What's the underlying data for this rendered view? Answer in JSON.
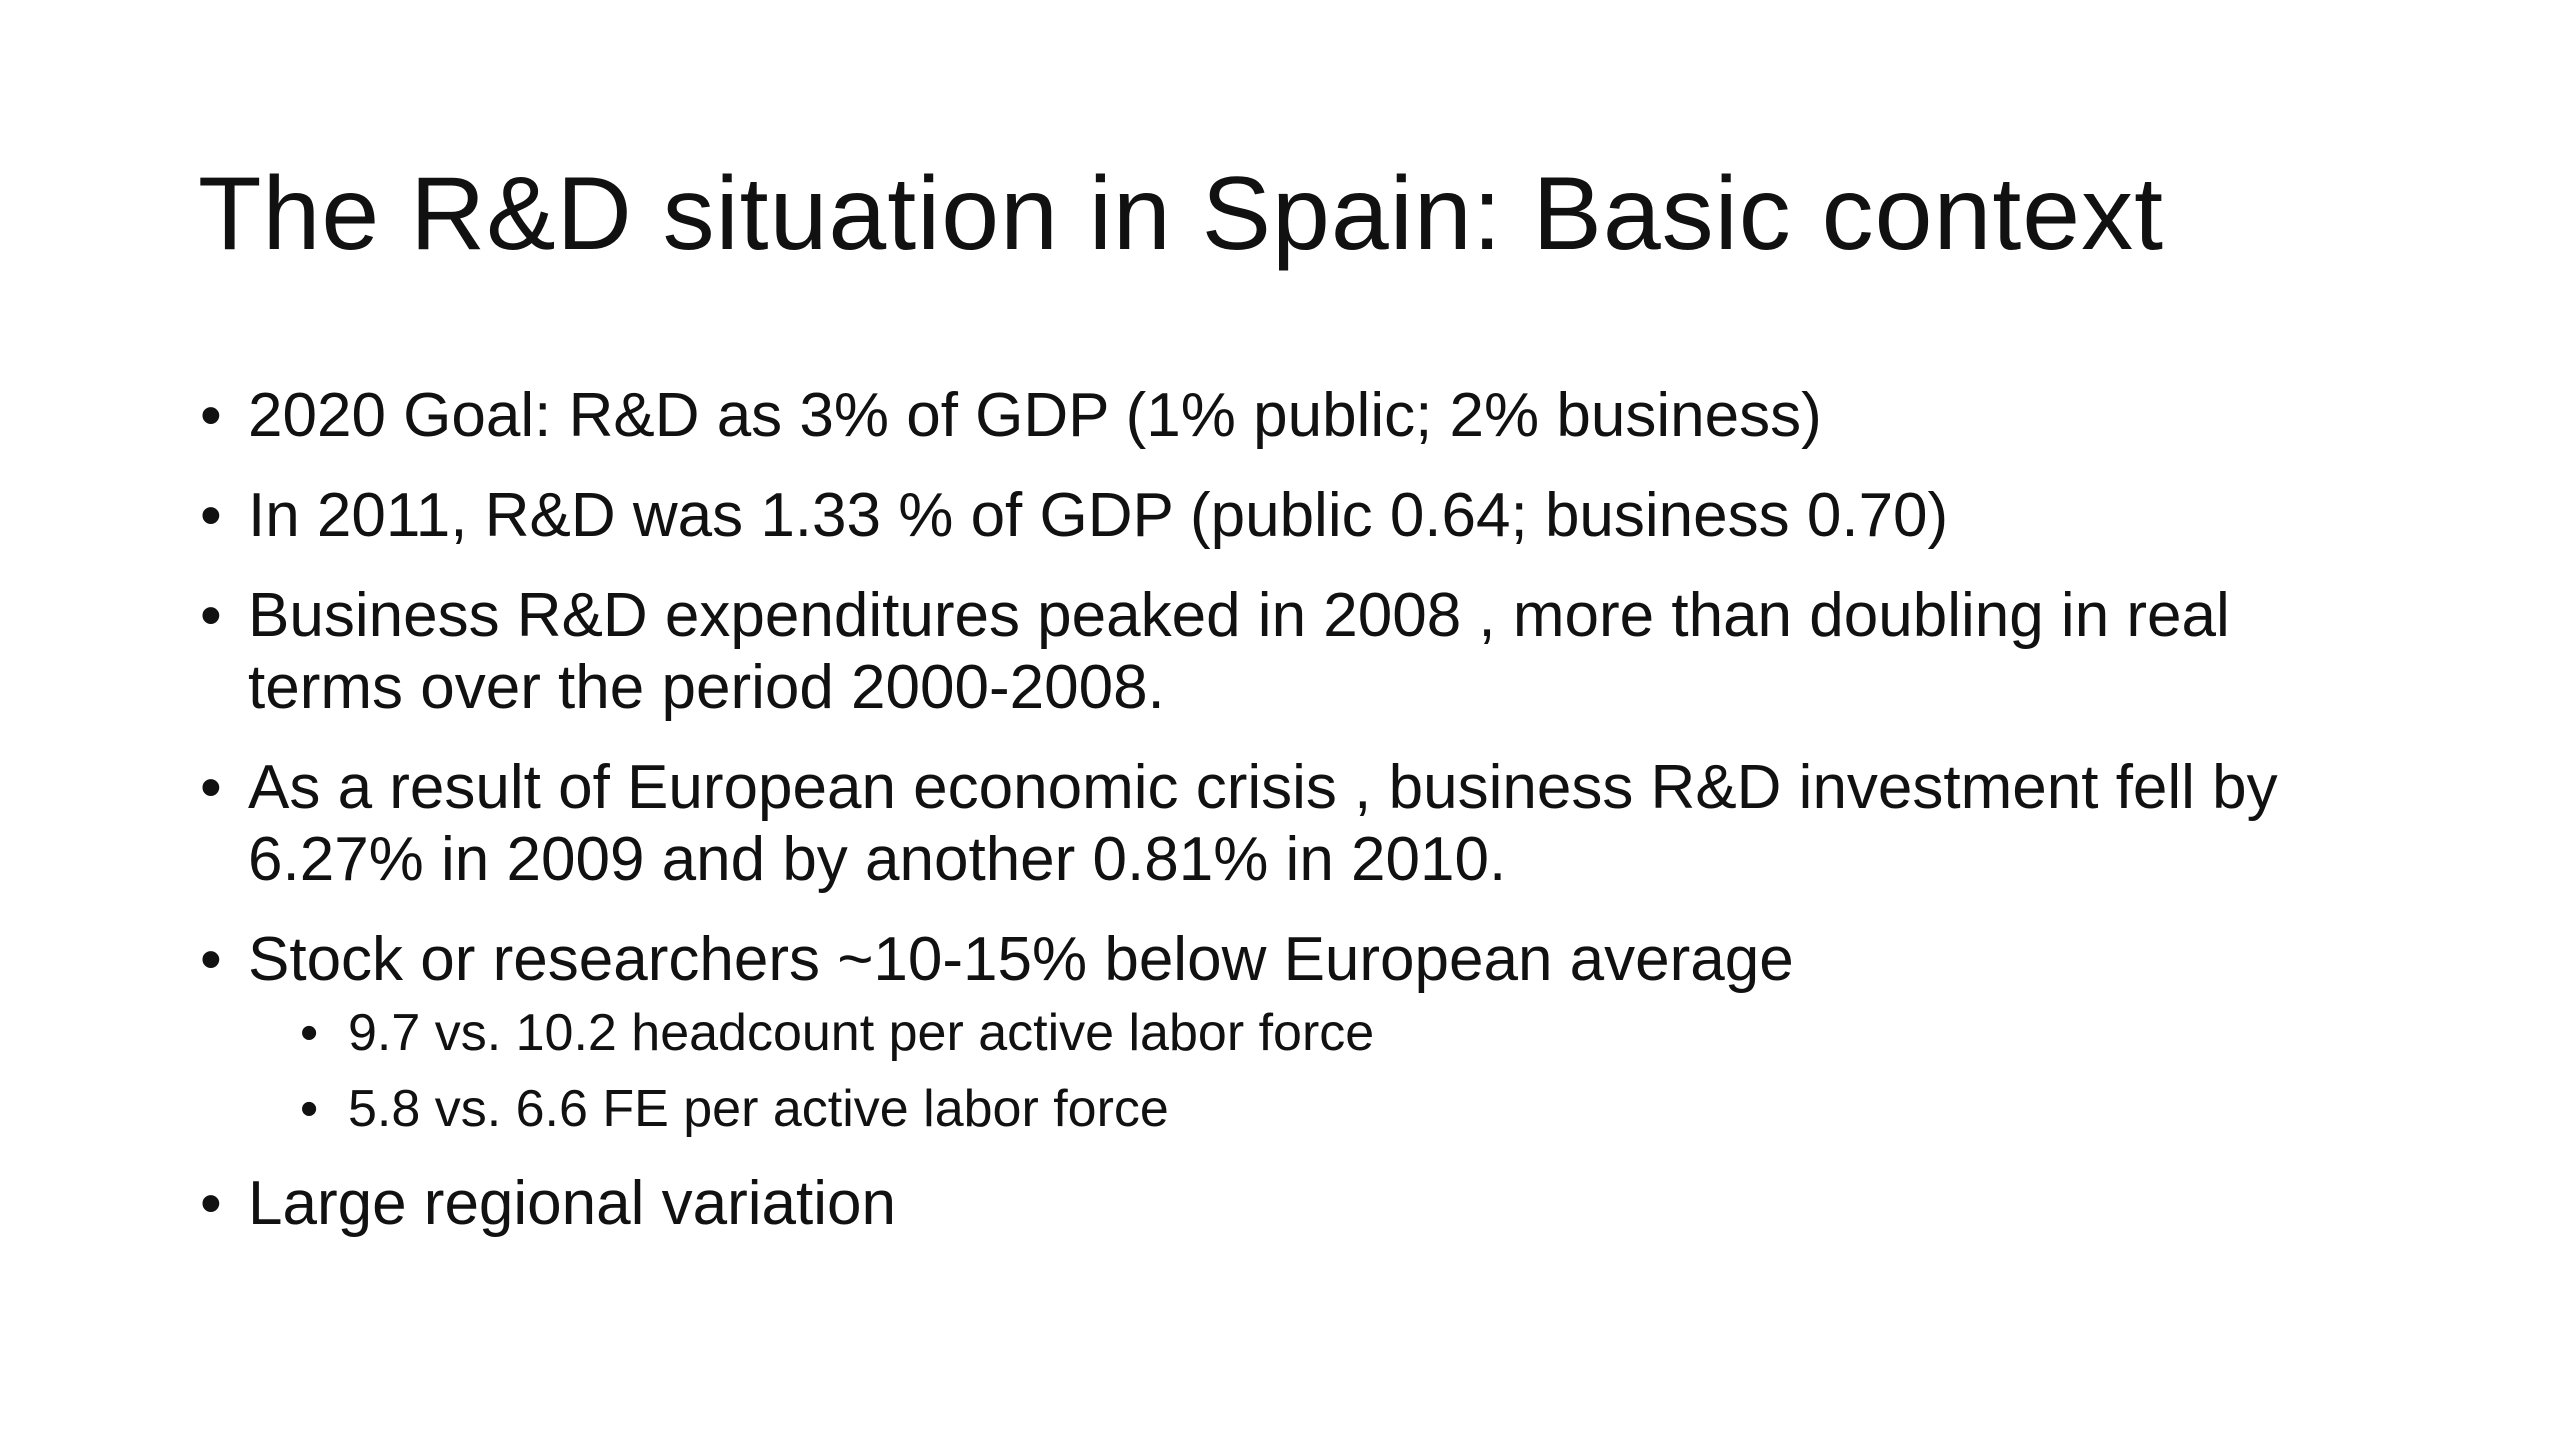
{
  "slide": {
    "title": "The R&D situation in Spain: Basic context",
    "bullet_glyph": "•",
    "bullets": [
      {
        "text": "2020 Goal: R&D as 3% of GDP (1% public; 2% business)"
      },
      {
        "text": "In 2011, R&D was 1.33 % of GDP (public 0.64; business 0.70)"
      },
      {
        "text": "Business R&D expenditures peaked in 2008 , more than doubling in real terms over the period 2000-2008."
      },
      {
        "text": "As a result of European  economic crisis , business R&D investment fell by 6.27% in 2009 and by another 0.81% in 2010."
      },
      {
        "text": "Stock or researchers  ~10-15% below European average",
        "sub": [
          {
            "text": "9.7 vs. 10.2 headcount per active labor force"
          },
          {
            "text": "5.8 vs. 6.6 FE per active labor force"
          }
        ]
      },
      {
        "text": "Large regional variation"
      }
    ]
  }
}
